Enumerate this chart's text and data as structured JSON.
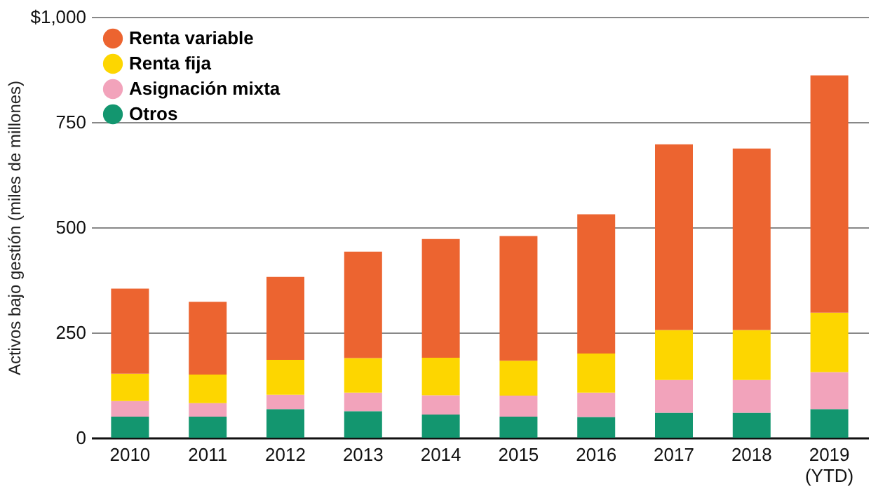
{
  "chart_data": {
    "type": "bar",
    "stacked": true,
    "ylabel": "Activos bajo gestión (miles de millones)",
    "categories": [
      "2010",
      "2011",
      "2012",
      "2013",
      "2014",
      "2015",
      "2016",
      "2017",
      "2018",
      "2019\n(YTD)"
    ],
    "series": [
      {
        "name": "Otros",
        "color": "#13966f",
        "values": [
          50,
          50,
          68,
          63,
          55,
          50,
          49,
          59,
          59,
          68
        ]
      },
      {
        "name": "Asignación mixta",
        "color": "#f2a3bb",
        "values": [
          37,
          32,
          34,
          44,
          46,
          50,
          58,
          78,
          78,
          88
        ]
      },
      {
        "name": "Renta fija",
        "color": "#fdd600",
        "values": [
          65,
          68,
          83,
          82,
          89,
          83,
          93,
          119,
          119,
          141
        ]
      },
      {
        "name": "Renta variable",
        "color": "#ec6430",
        "values": [
          202,
          173,
          197,
          253,
          282,
          296,
          331,
          441,
          431,
          564
        ]
      }
    ],
    "ylim": [
      0,
      1000
    ],
    "yticks": [
      0,
      250,
      500,
      750,
      {
        "value": 1000,
        "label": "$1,000"
      }
    ],
    "grid": "y",
    "legend": "top left"
  }
}
